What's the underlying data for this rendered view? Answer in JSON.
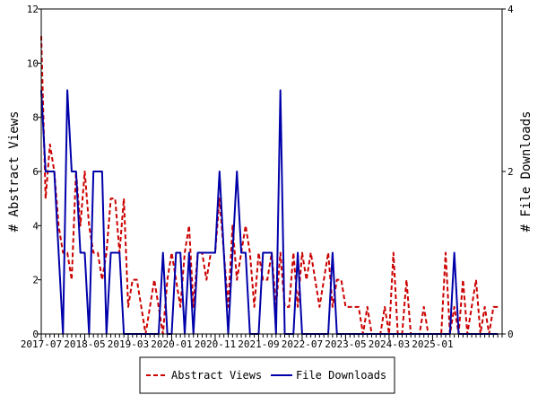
{
  "chart_data": {
    "type": "line",
    "xlabel": "",
    "ylabel_left": "# Abstract Views",
    "ylabel_right": "# File Downloads",
    "x_tick_labels": [
      "2017-07",
      "2018-05",
      "2019-03",
      "2020-01",
      "2020-11",
      "2021-09",
      "2022-07",
      "2023-05",
      "2024-03",
      "2025-01"
    ],
    "y_left_ticks": [
      0,
      2,
      4,
      6,
      8,
      10,
      12
    ],
    "y_right_ticks": [
      0,
      2,
      4
    ],
    "ylim_left": [
      0,
      12
    ],
    "ylim_right": [
      0,
      4
    ],
    "grid": false,
    "legend_position": "bottom",
    "series": [
      {
        "name": "Abstract Views",
        "axis": "left",
        "color": "#cc0000",
        "style": "dashed",
        "points": [
          [
            0,
            11
          ],
          [
            1,
            5
          ],
          [
            2,
            7
          ],
          [
            3,
            6
          ],
          [
            4,
            4
          ],
          [
            5,
            3
          ],
          [
            6,
            3
          ],
          [
            7,
            2
          ],
          [
            8,
            6
          ],
          [
            9,
            4
          ],
          [
            10,
            6
          ],
          [
            11,
            4
          ],
          [
            12,
            3
          ],
          [
            13,
            3
          ],
          [
            14,
            2
          ],
          [
            15,
            3
          ],
          [
            16,
            5
          ],
          [
            17,
            5
          ],
          [
            18,
            3
          ],
          [
            19,
            5
          ],
          [
            20,
            1
          ],
          [
            21,
            2
          ],
          [
            22,
            2
          ],
          [
            23,
            1
          ],
          [
            24,
            0
          ],
          [
            25,
            1
          ],
          [
            26,
            2
          ],
          [
            27,
            1
          ],
          [
            28,
            0
          ],
          [
            29,
            2
          ],
          [
            30,
            3
          ],
          [
            31,
            2
          ],
          [
            32,
            1
          ],
          [
            33,
            3
          ],
          [
            34,
            4
          ],
          [
            35,
            1
          ],
          [
            36,
            3
          ],
          [
            37,
            3
          ],
          [
            38,
            2
          ],
          [
            39,
            3
          ],
          [
            40,
            3
          ],
          [
            41,
            5
          ],
          [
            42,
            3
          ],
          [
            43,
            1
          ],
          [
            44,
            4
          ],
          [
            45,
            2
          ],
          [
            46,
            3
          ],
          [
            47,
            4
          ],
          [
            48,
            3
          ],
          [
            49,
            1
          ],
          [
            50,
            3
          ],
          [
            51,
            2
          ],
          [
            52,
            2
          ],
          [
            53,
            3
          ],
          [
            54,
            1
          ],
          [
            55,
            3
          ],
          [
            56,
            1
          ],
          [
            57,
            1
          ],
          [
            58,
            3
          ],
          [
            59,
            1
          ],
          [
            60,
            3
          ],
          [
            61,
            2
          ],
          [
            62,
            3
          ],
          [
            63,
            2
          ],
          [
            64,
            1
          ],
          [
            65,
            2
          ],
          [
            66,
            3
          ],
          [
            67,
            1
          ],
          [
            68,
            2
          ],
          [
            69,
            2
          ],
          [
            70,
            1
          ],
          [
            71,
            1
          ],
          [
            72,
            1
          ],
          [
            73,
            1
          ],
          [
            74,
            0
          ],
          [
            75,
            1
          ],
          [
            76,
            0
          ],
          [
            77,
            0
          ],
          [
            78,
            0
          ],
          [
            79,
            1
          ],
          [
            80,
            0
          ],
          [
            81,
            3
          ],
          [
            82,
            0
          ],
          [
            83,
            0
          ],
          [
            84,
            2
          ],
          [
            85,
            0
          ],
          [
            86,
            0
          ],
          [
            87,
            0
          ],
          [
            88,
            1
          ],
          [
            89,
            0
          ],
          [
            90,
            0
          ],
          [
            91,
            0
          ],
          [
            92,
            0
          ],
          [
            93,
            3
          ],
          [
            94,
            0
          ],
          [
            95,
            1
          ],
          [
            96,
            0
          ],
          [
            97,
            2
          ],
          [
            98,
            0
          ],
          [
            99,
            1
          ],
          [
            100,
            2
          ],
          [
            101,
            0
          ],
          [
            102,
            1
          ],
          [
            103,
            0
          ],
          [
            104,
            1
          ],
          [
            105,
            1
          ]
        ]
      },
      {
        "name": "File Downloads",
        "axis": "right",
        "color": "#0000aa",
        "style": "solid",
        "points": [
          [
            0,
            3
          ],
          [
            1,
            2
          ],
          [
            2,
            2
          ],
          [
            3,
            2
          ],
          [
            4,
            1
          ],
          [
            5,
            0
          ],
          [
            6,
            3
          ],
          [
            7,
            2
          ],
          [
            8,
            2
          ],
          [
            9,
            1
          ],
          [
            10,
            1
          ],
          [
            11,
            0
          ],
          [
            12,
            2
          ],
          [
            13,
            2
          ],
          [
            14,
            2
          ],
          [
            15,
            0
          ],
          [
            16,
            1
          ],
          [
            17,
            1
          ],
          [
            18,
            1
          ],
          [
            19,
            0
          ],
          [
            20,
            0
          ],
          [
            21,
            0
          ],
          [
            22,
            0
          ],
          [
            23,
            0
          ],
          [
            24,
            0
          ],
          [
            25,
            0
          ],
          [
            26,
            0
          ],
          [
            27,
            0
          ],
          [
            28,
            1
          ],
          [
            29,
            0
          ],
          [
            30,
            0
          ],
          [
            31,
            1
          ],
          [
            32,
            1
          ],
          [
            33,
            0
          ],
          [
            34,
            1
          ],
          [
            35,
            0
          ],
          [
            36,
            1
          ],
          [
            37,
            1
          ],
          [
            38,
            1
          ],
          [
            39,
            1
          ],
          [
            40,
            1
          ],
          [
            41,
            2
          ],
          [
            42,
            1
          ],
          [
            43,
            0
          ],
          [
            44,
            1
          ],
          [
            45,
            2
          ],
          [
            46,
            1
          ],
          [
            47,
            1
          ],
          [
            48,
            0
          ],
          [
            49,
            0
          ],
          [
            50,
            0
          ],
          [
            51,
            1
          ],
          [
            52,
            1
          ],
          [
            53,
            1
          ],
          [
            54,
            0
          ],
          [
            55,
            3
          ],
          [
            56,
            0
          ],
          [
            57,
            0
          ],
          [
            58,
            0
          ],
          [
            59,
            1
          ],
          [
            60,
            0
          ],
          [
            61,
            0
          ],
          [
            62,
            0
          ],
          [
            63,
            0
          ],
          [
            64,
            0
          ],
          [
            65,
            0
          ],
          [
            66,
            0
          ],
          [
            67,
            1
          ],
          [
            68,
            0
          ],
          [
            69,
            0
          ],
          [
            70,
            0
          ],
          [
            71,
            0
          ],
          [
            72,
            0
          ],
          [
            73,
            0
          ],
          [
            74,
            0
          ],
          [
            75,
            0
          ],
          [
            76,
            0
          ],
          [
            77,
            0
          ],
          [
            78,
            0
          ],
          [
            79,
            0
          ],
          [
            80,
            0
          ],
          [
            81,
            0
          ],
          [
            82,
            0
          ],
          [
            83,
            0
          ],
          [
            84,
            0
          ],
          [
            85,
            0
          ],
          [
            86,
            0
          ],
          [
            87,
            0
          ],
          [
            88,
            0
          ],
          [
            89,
            0
          ],
          [
            90,
            0
          ],
          [
            91,
            0
          ],
          [
            92,
            0
          ],
          [
            93,
            0
          ],
          [
            94,
            0
          ],
          [
            95,
            1
          ],
          [
            96,
            0
          ],
          [
            97,
            0
          ],
          [
            98,
            0
          ],
          [
            99,
            0
          ],
          [
            100,
            0
          ],
          [
            101,
            0
          ],
          [
            102,
            0
          ],
          [
            103,
            0
          ],
          [
            104,
            0
          ],
          [
            105,
            0
          ]
        ]
      }
    ]
  }
}
